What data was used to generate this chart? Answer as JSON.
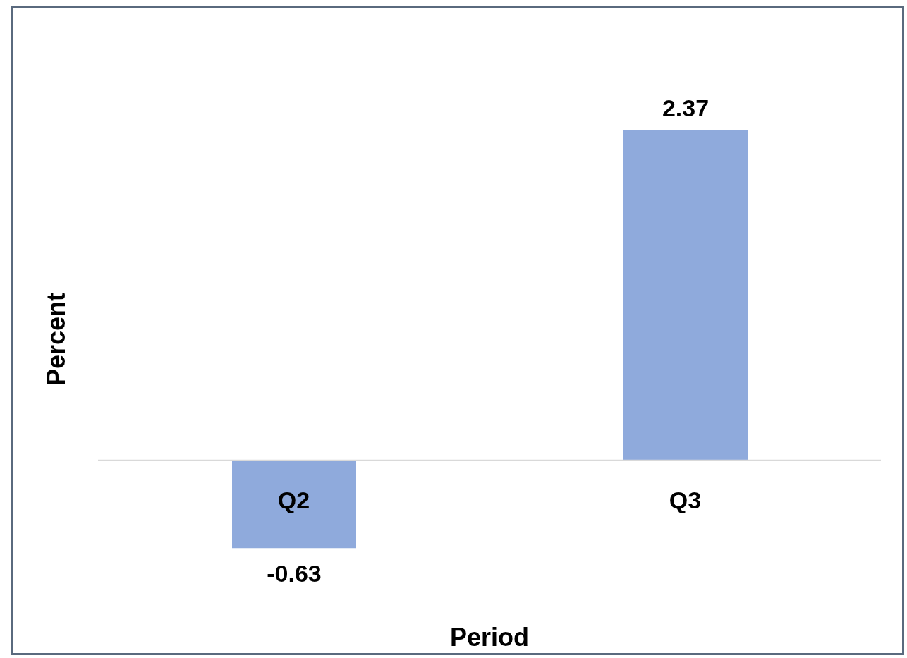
{
  "chart_data": {
    "type": "bar",
    "categories": [
      "Q2",
      "Q3"
    ],
    "values": [
      -0.63,
      2.37
    ],
    "color": "#8faadc",
    "data_labels": true,
    "xlabel": "Period",
    "ylabel": "Percent"
  }
}
